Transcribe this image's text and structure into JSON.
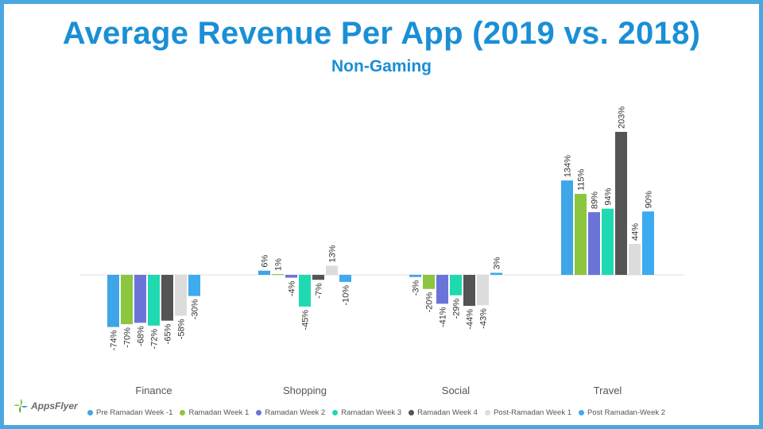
{
  "header": {
    "title": "Average Revenue Per App (2019 vs. 2018)",
    "subtitle": "Non-Gaming"
  },
  "brand": {
    "logo_text": "AppsFlyer"
  },
  "chart_data": {
    "type": "bar",
    "title": "Average Revenue Per App (2019 vs. 2018)",
    "subtitle": "Non-Gaming",
    "xlabel": "",
    "ylabel": "",
    "ylim": [
      -80,
      210
    ],
    "grid": false,
    "legend_position": "bottom",
    "value_suffix": "%",
    "categories": [
      "Finance",
      "Shopping",
      "Social",
      "Travel"
    ],
    "series": [
      {
        "name": "Pre Ramadan Week -1",
        "color": "#3ea6e6",
        "values": [
          -74,
          6,
          -3,
          134
        ]
      },
      {
        "name": "Ramadan Week 1",
        "color": "#8cc63f",
        "values": [
          -70,
          1,
          -20,
          115
        ]
      },
      {
        "name": "Ramadan Week 2",
        "color": "#6a74d8",
        "values": [
          -68,
          -4,
          -41,
          89
        ]
      },
      {
        "name": "Ramadan Week 3",
        "color": "#1fd9b0",
        "values": [
          -72,
          -45,
          -29,
          94
        ]
      },
      {
        "name": "Ramadan Week 4",
        "color": "#545454",
        "values": [
          -65,
          -7,
          -44,
          203
        ]
      },
      {
        "name": "Post-Ramadan Week 1",
        "color": "#dcdcdc",
        "values": [
          -58,
          13,
          -43,
          44
        ]
      },
      {
        "name": "Post Ramadan-Week 2",
        "color": "#3eaaf0",
        "values": [
          -30,
          -10,
          3,
          90
        ]
      }
    ]
  }
}
